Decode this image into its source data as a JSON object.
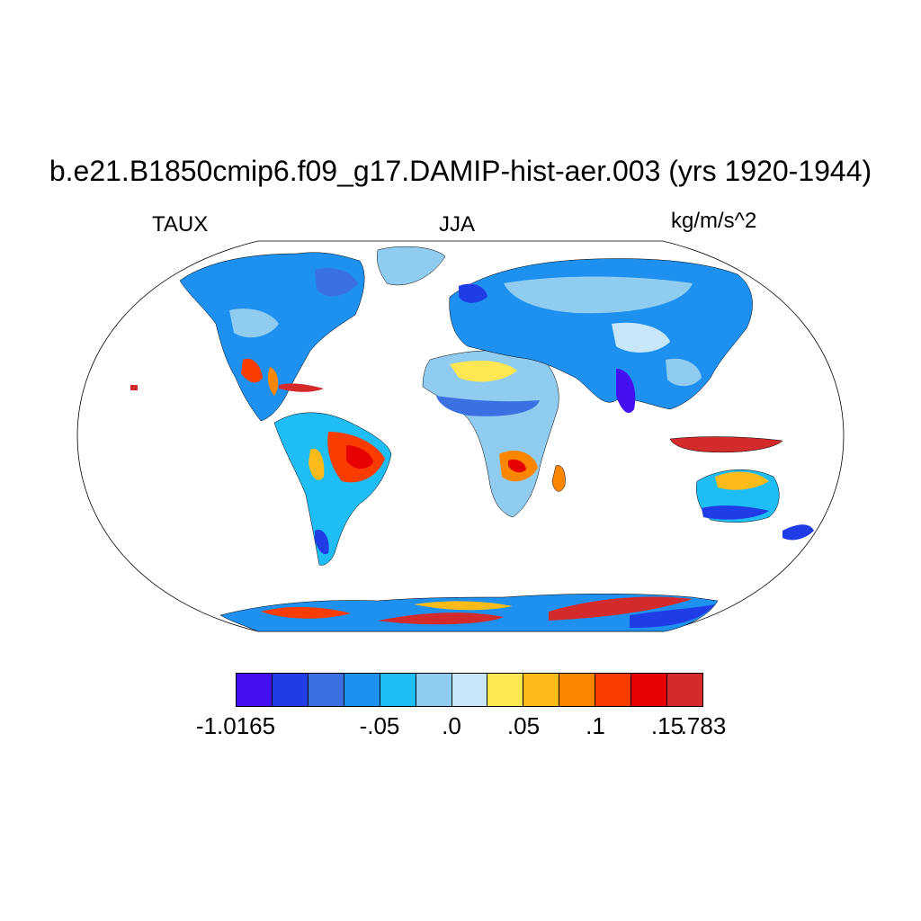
{
  "title": "b.e21.B1850cmip6.f09_g17.DAMIP-hist-aer.003 (yrs 1920-1944)",
  "variable": "TAUX",
  "season": "JJA",
  "units": "kg/m/s^2",
  "map": {
    "projection": "robinson",
    "field": "surface zonal wind stress over land",
    "ocean": "blank"
  },
  "colorbar": {
    "colors": [
      "#4410f0",
      "#1f3ce6",
      "#3a70e2",
      "#1e90f0",
      "#1ebdf5",
      "#90ccef",
      "#c7e6f7",
      "#fee753",
      "#fdbb19",
      "#fd8600",
      "#fb3c00",
      "#e70000",
      "#d32b2b"
    ],
    "labels": [
      "-1.0165",
      "-.05",
      ".0",
      ".05",
      ".1",
      ".15",
      ".783"
    ],
    "label_positions": [
      0,
      2,
      3,
      4,
      5,
      6,
      7
    ]
  }
}
